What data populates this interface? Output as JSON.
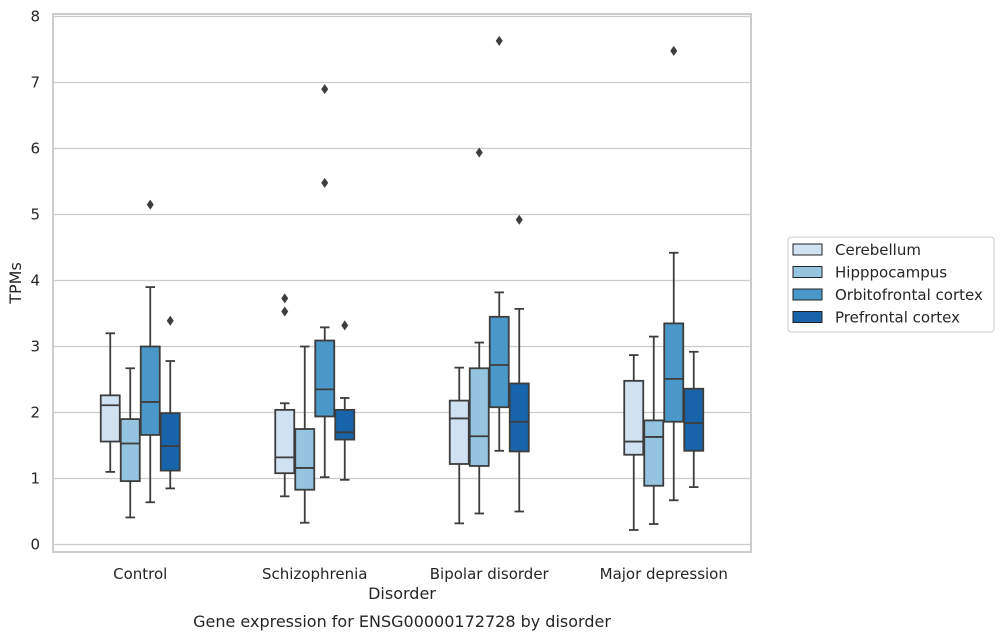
{
  "chart_data": {
    "type": "box",
    "title": "Gene expression for ENSG00000172728 by disorder",
    "xlabel": "Disorder",
    "ylabel": "TPMs",
    "ylim": [
      -0.12,
      8.0
    ],
    "yticks": [
      0,
      1,
      2,
      3,
      4,
      5,
      6,
      7,
      8
    ],
    "grid": true,
    "legend_position": "right",
    "categories": [
      "Control",
      "Schizophrenia",
      "Bipolar disorder",
      "Major depression"
    ],
    "series": [
      {
        "name": "Cerebellum",
        "color": "#d0e1f2",
        "boxes": [
          {
            "whislo": 1.1,
            "q1": 1.56,
            "med": 2.11,
            "q3": 2.26,
            "whishi": 3.2,
            "fliers": []
          },
          {
            "whislo": 0.73,
            "q1": 1.08,
            "med": 1.32,
            "q3": 2.04,
            "whishi": 2.14,
            "fliers": [
              3.53,
              3.73
            ]
          },
          {
            "whislo": 0.32,
            "q1": 1.22,
            "med": 1.91,
            "q3": 2.18,
            "whishi": 2.68,
            "fliers": []
          },
          {
            "whislo": 0.22,
            "q1": 1.36,
            "med": 1.56,
            "q3": 2.48,
            "whishi": 2.87,
            "fliers": []
          }
        ]
      },
      {
        "name": "Hipppocampus",
        "color": "#94c4df",
        "boxes": [
          {
            "whislo": 0.41,
            "q1": 0.96,
            "med": 1.53,
            "q3": 1.9,
            "whishi": 2.67,
            "fliers": []
          },
          {
            "whislo": 0.33,
            "q1": 0.83,
            "med": 1.16,
            "q3": 1.75,
            "whishi": 3.0,
            "fliers": []
          },
          {
            "whislo": 0.47,
            "q1": 1.19,
            "med": 1.64,
            "q3": 2.67,
            "whishi": 3.06,
            "fliers": [
              5.94
            ]
          },
          {
            "whislo": 0.31,
            "q1": 0.89,
            "med": 1.63,
            "q3": 1.88,
            "whishi": 3.15,
            "fliers": []
          }
        ]
      },
      {
        "name": "Orbitofrontal cortex",
        "color": "#4a98c9",
        "boxes": [
          {
            "whislo": 0.64,
            "q1": 1.66,
            "med": 2.16,
            "q3": 3.0,
            "whishi": 3.9,
            "fliers": [
              5.15
            ]
          },
          {
            "whislo": 1.02,
            "q1": 1.94,
            "med": 2.35,
            "q3": 3.09,
            "whishi": 3.29,
            "fliers": [
              5.48,
              6.9
            ]
          },
          {
            "whislo": 1.42,
            "q1": 2.08,
            "med": 2.72,
            "q3": 3.45,
            "whishi": 3.82,
            "fliers": [
              7.63
            ]
          },
          {
            "whislo": 0.67,
            "q1": 1.86,
            "med": 2.51,
            "q3": 3.35,
            "whishi": 4.42,
            "fliers": [
              7.48
            ]
          }
        ]
      },
      {
        "name": "Prefrontal cortex",
        "color": "#1764ab",
        "boxes": [
          {
            "whislo": 0.85,
            "q1": 1.12,
            "med": 1.49,
            "q3": 1.99,
            "whishi": 2.78,
            "fliers": [
              3.39
            ]
          },
          {
            "whislo": 0.98,
            "q1": 1.59,
            "med": 1.7,
            "q3": 2.04,
            "whishi": 2.22,
            "fliers": [
              3.32
            ]
          },
          {
            "whislo": 0.5,
            "q1": 1.41,
            "med": 1.86,
            "q3": 2.44,
            "whishi": 3.57,
            "fliers": [
              4.92
            ]
          },
          {
            "whislo": 0.87,
            "q1": 1.42,
            "med": 1.84,
            "q3": 2.36,
            "whishi": 2.92,
            "fliers": []
          }
        ]
      }
    ]
  }
}
